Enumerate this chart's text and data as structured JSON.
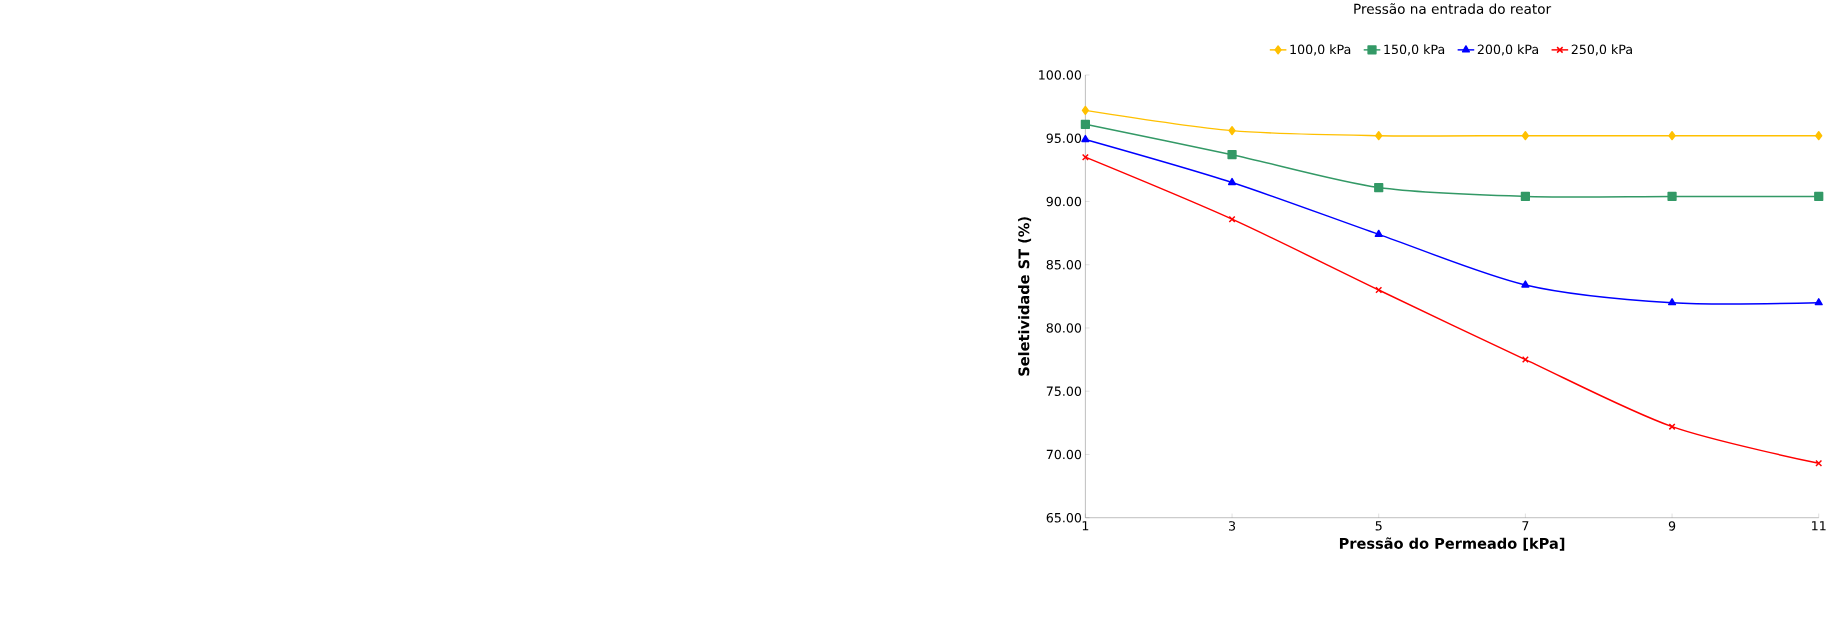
{
  "chart_data": {
    "type": "line",
    "xlabel": "Pressão do Permeado [kPa]",
    "ylabel": "Seletividade ST (%)",
    "legend_title": "Pressão na entrada do reator",
    "x": [
      1,
      3,
      5,
      7,
      9,
      11
    ],
    "xlim": [
      1,
      11
    ],
    "xticks": [
      1,
      3,
      5,
      7,
      9,
      11
    ],
    "ylim": [
      65,
      100
    ],
    "yticks": [
      {
        "value": 65,
        "label": "65.00"
      },
      {
        "value": 70,
        "label": "70.00"
      },
      {
        "value": 75,
        "label": "75.00"
      },
      {
        "value": 80,
        "label": "80.00"
      },
      {
        "value": 85,
        "label": "85.00"
      },
      {
        "value": 90,
        "label": "90.00"
      },
      {
        "value": 95,
        "label": "95.00"
      },
      {
        "value": 100,
        "label": "100.00"
      }
    ],
    "grid": false,
    "legend": "top",
    "line_style": "solid",
    "series": [
      {
        "name": "100,0 kPa",
        "color": "#ffc000",
        "marker": "diamond",
        "values": [
          97.2,
          95.6,
          95.2,
          95.2,
          95.2,
          95.2
        ]
      },
      {
        "name": "150,0 kPa",
        "color": "#339966",
        "marker": "square",
        "values": [
          96.1,
          93.7,
          91.1,
          90.4,
          90.4,
          90.4
        ]
      },
      {
        "name": "200,0 kPa",
        "color": "#0000ff",
        "marker": "triangle",
        "values": [
          94.9,
          91.5,
          87.4,
          83.4,
          82.0,
          82.0
        ]
      },
      {
        "name": "250,0 kPa",
        "color": "#ff0000",
        "marker": "cross",
        "values": [
          93.5,
          88.6,
          83.0,
          77.5,
          72.2,
          69.3
        ]
      }
    ]
  }
}
